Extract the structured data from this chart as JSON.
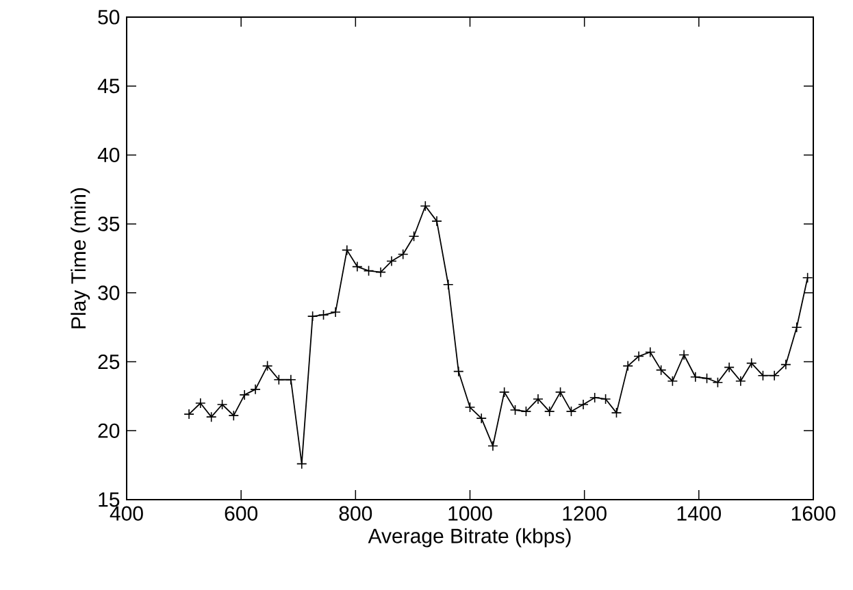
{
  "chart_data": {
    "type": "line",
    "xlabel": "Average Bitrate (kbps)",
    "ylabel": "Play Time (min)",
    "xlim": [
      400,
      1600
    ],
    "xticks": [
      400,
      600,
      800,
      1000,
      1200,
      1400,
      1600
    ],
    "ylim": [
      15,
      50
    ],
    "yticks": [
      15,
      20,
      25,
      30,
      35,
      40,
      45,
      50
    ],
    "grid": false,
    "marker": "cross",
    "line_style": "solid",
    "x": [
      509,
      529,
      548,
      567,
      587,
      606,
      625,
      646,
      666,
      687,
      706,
      725,
      744,
      765,
      785,
      803,
      823,
      844,
      863,
      883,
      902,
      922,
      942,
      962,
      980,
      1000,
      1020,
      1040,
      1060,
      1079,
      1098,
      1119,
      1139,
      1158,
      1177,
      1198,
      1218,
      1237,
      1256,
      1276,
      1295,
      1315,
      1334,
      1354,
      1374,
      1394,
      1414,
      1433,
      1453,
      1473,
      1492,
      1512,
      1532,
      1552,
      1571,
      1590
    ],
    "series": [
      {
        "color": "#000000",
        "values": [
          21.2,
          22.0,
          21.0,
          21.9,
          21.1,
          22.6,
          23.0,
          24.7,
          23.7,
          23.7,
          17.6,
          28.3,
          28.4,
          28.6,
          33.1,
          31.9,
          31.6,
          31.5,
          32.3,
          32.8,
          34.1,
          36.3,
          35.2,
          30.6,
          24.3,
          21.7,
          20.9,
          18.9,
          22.8,
          21.5,
          21.4,
          22.3,
          21.4,
          22.8,
          21.4,
          21.9,
          22.4,
          22.3,
          21.3,
          24.7,
          25.4,
          25.7,
          24.4,
          23.6,
          25.5,
          23.9,
          23.8,
          23.5,
          24.6,
          23.6,
          24.9,
          24.0,
          24.0,
          24.8,
          27.5,
          31.1
        ]
      }
    ]
  }
}
